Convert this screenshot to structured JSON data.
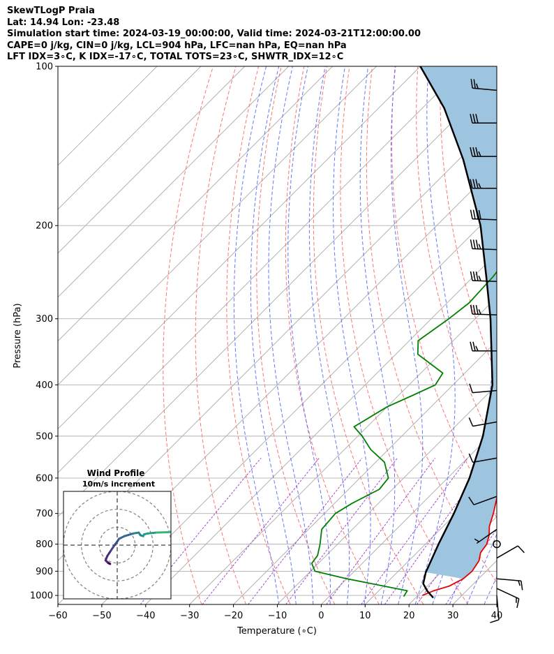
{
  "header": {
    "lines": [
      "SkewTLogP Praia",
      "Lat: 14.94   Lon: -23.48",
      "Simulation start time: 2024-03-19_00:00:00, Valid time: 2024-03-21T12:00:00.00",
      "CAPE=0 j/kg, CIN=0 j/kg, LCL=904 hPa, LFC=nan hPa, EQ=nan hPa",
      "LFT IDX=3∘C, K IDX=-17∘C, TOTAL TOTS=23∘C, SHWTR_IDX=12∘C"
    ]
  },
  "chart_data": [
    {
      "type": "line",
      "subtype": "skew-T log-P diagram",
      "xlabel": "Temperature (∘C)",
      "ylabel": "Pressure (hPa)",
      "xlim": [
        -60,
        40
      ],
      "ylim": [
        1040,
        100
      ],
      "y_scale": "log",
      "x_ticks": [
        -60,
        -50,
        -40,
        -30,
        -20,
        -10,
        0,
        10,
        20,
        30,
        40
      ],
      "x_tick_labels": [
        "−60",
        "−50",
        "−40",
        "−30",
        "−20",
        "−10",
        "0",
        "10",
        "20",
        "30",
        "40"
      ],
      "y_ticks": [
        1000,
        900,
        800,
        700,
        600,
        500,
        400,
        300,
        200,
        100
      ],
      "y_tick_labels": [
        "1000",
        "900",
        "800",
        "700",
        "600",
        "500",
        "400",
        "300",
        "200",
        "100"
      ],
      "grid": true,
      "series": [
        {
          "role": "temperature",
          "color": "#e60000",
          "points": [
            [
              1000,
              21
            ],
            [
              980,
              22.5
            ],
            [
              960,
              25
            ],
            [
              930,
              26.5
            ],
            [
              900,
              26.8
            ],
            [
              860,
              26
            ],
            [
              830,
              24.5
            ],
            [
              800,
              24
            ],
            [
              770,
              22.5
            ],
            [
              740,
              20.5
            ],
            [
              700,
              18.5
            ],
            [
              650,
              15.5
            ],
            [
              600,
              11.5
            ],
            [
              550,
              7.5
            ],
            [
              500,
              3
            ],
            [
              460,
              -0.5
            ],
            [
              420,
              -4.5
            ],
            [
              390,
              -7.5
            ],
            [
              370,
              -8.5
            ],
            [
              340,
              -11
            ],
            [
              320,
              -13.5
            ],
            [
              280,
              -19
            ],
            [
              250,
              -24.5
            ],
            [
              220,
              -31
            ],
            [
              200,
              -35.5
            ],
            [
              180,
              -41
            ],
            [
              160,
              -48
            ],
            [
              140,
              -57
            ],
            [
              120,
              -68
            ],
            [
              110,
              -73
            ],
            [
              100,
              -78
            ]
          ]
        },
        {
          "role": "dewpoint",
          "color": "#008000",
          "points": [
            [
              1005,
              17
            ],
            [
              980,
              16.5
            ],
            [
              960,
              10
            ],
            [
              930,
              0
            ],
            [
              900,
              -9
            ],
            [
              870,
              -11.5
            ],
            [
              840,
              -12
            ],
            [
              800,
              -14
            ],
            [
              750,
              -17
            ],
            [
              700,
              -17.5
            ],
            [
              670,
              -16
            ],
            [
              630,
              -13
            ],
            [
              600,
              -13.5
            ],
            [
              560,
              -18
            ],
            [
              530,
              -24
            ],
            [
              500,
              -29
            ],
            [
              480,
              -33
            ],
            [
              440,
              -30
            ],
            [
              420,
              -27
            ],
            [
              400,
              -24
            ],
            [
              380,
              -25
            ],
            [
              350,
              -35
            ],
            [
              330,
              -38
            ],
            [
              300,
              -36
            ],
            [
              280,
              -35
            ],
            [
              250,
              -35.5
            ],
            [
              220,
              -37
            ],
            [
              200,
              -40
            ],
            [
              180,
              -45
            ],
            [
              160,
              -49
            ],
            [
              140,
              -54
            ],
            [
              120,
              -60
            ],
            [
              110,
              -62
            ],
            [
              100,
              -63
            ]
          ]
        },
        {
          "role": "parcel",
          "color": "#000000",
          "points": [
            [
              1010,
              24
            ],
            [
              980,
              21
            ],
            [
              950,
              18.5
            ],
            [
              904,
              16.5
            ],
            [
              800,
              13
            ],
            [
              700,
              9.5
            ],
            [
              600,
              5
            ],
            [
              500,
              -1.5
            ],
            [
              400,
              -11
            ],
            [
              300,
              -26.5
            ],
            [
              250,
              -37
            ],
            [
              200,
              -50
            ],
            [
              150,
              -69
            ],
            [
              120,
              -85
            ],
            [
              100,
              -100
            ]
          ]
        }
      ],
      "shaded_region": {
        "between": [
          "temperature",
          "parcel"
        ],
        "color": "#9ec5e0"
      },
      "background_lines": {
        "isotherms_color": "#a9a9a9",
        "dry_adiabats_color": "#ff5a5a",
        "moist_adiabats_color": "#4a5cff",
        "mixing_ratio_color": "#9933cc"
      },
      "wind_barbs": [
        {
          "p": 1000,
          "speed_kt": 10,
          "dir_deg": 175
        },
        {
          "p": 970,
          "speed_kt": 15,
          "dir_deg": 115
        },
        {
          "p": 930,
          "speed_kt": 15,
          "dir_deg": 95
        },
        {
          "p": 850,
          "speed_kt": 10,
          "dir_deg": 60
        },
        {
          "p": 800,
          "speed_kt": 0,
          "dir_deg": 0
        },
        {
          "p": 750,
          "speed_kt": 5,
          "dir_deg": 235
        },
        {
          "p": 650,
          "speed_kt": 10,
          "dir_deg": 250
        },
        {
          "p": 550,
          "speed_kt": 10,
          "dir_deg": 260
        },
        {
          "p": 470,
          "speed_kt": 10,
          "dir_deg": 260
        },
        {
          "p": 410,
          "speed_kt": 10,
          "dir_deg": 265
        },
        {
          "p": 345,
          "speed_kt": 25,
          "dir_deg": 270
        },
        {
          "p": 295,
          "speed_kt": 35,
          "dir_deg": 272
        },
        {
          "p": 255,
          "speed_kt": 35,
          "dir_deg": 272
        },
        {
          "p": 222,
          "speed_kt": 35,
          "dir_deg": 272
        },
        {
          "p": 195,
          "speed_kt": 40,
          "dir_deg": 272
        },
        {
          "p": 170,
          "speed_kt": 35,
          "dir_deg": 270
        },
        {
          "p": 148,
          "speed_kt": 35,
          "dir_deg": 270
        },
        {
          "p": 128,
          "speed_kt": 30,
          "dir_deg": 270
        },
        {
          "p": 111,
          "speed_kt": 25,
          "dir_deg": 275
        }
      ]
    },
    {
      "type": "line",
      "subtype": "hodograph",
      "title": "Wind Profile",
      "subtitle": "10m/s increment",
      "rings_ms": [
        10,
        20,
        30
      ],
      "xlim": [
        -30,
        30
      ],
      "ylim": [
        -30,
        30
      ],
      "colormap": "viridis",
      "points": [
        [
          -6,
          -9
        ],
        [
          -5,
          -10
        ],
        [
          -4,
          -10.5
        ],
        [
          -5.5,
          -9.5
        ],
        [
          -6.5,
          -8.5
        ],
        [
          -5.5,
          -6
        ],
        [
          -3.5,
          -3
        ],
        [
          -1.5,
          0
        ],
        [
          0,
          2
        ],
        [
          1,
          3.5
        ],
        [
          4,
          5
        ],
        [
          9,
          6.5
        ],
        [
          12,
          7
        ],
        [
          13,
          5.5
        ],
        [
          14.5,
          5
        ],
        [
          15,
          6
        ],
        [
          17,
          6.5
        ],
        [
          22,
          7
        ],
        [
          28,
          7.2
        ],
        [
          32,
          7.4
        ]
      ]
    }
  ]
}
